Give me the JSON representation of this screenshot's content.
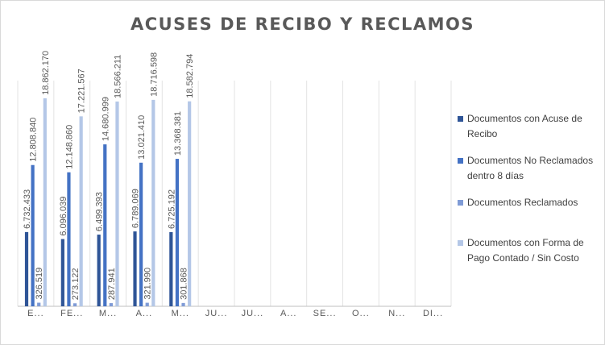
{
  "chart_data": {
    "type": "bar",
    "title": "ACUSES DE RECIBO Y RECLAMOS",
    "categories": [
      "E...",
      "FE...",
      "M...",
      "A...",
      "M...",
      "JU...",
      "JU...",
      "A...",
      "SE...",
      "O...",
      "N...",
      "DI..."
    ],
    "series": [
      {
        "name": "Documentos con Acuse de Recibo",
        "color": "#2f5597",
        "values": [
          6732433,
          6096039,
          6499393,
          6789069,
          6725192,
          null,
          null,
          null,
          null,
          null,
          null,
          null
        ],
        "labels": [
          "6.732.433",
          "6.096.039",
          "6.499.393",
          "6.789.069",
          "6.725.192"
        ]
      },
      {
        "name": "Documentos No Reclamados dentro 8 días",
        "color": "#4472c4",
        "values": [
          12808840,
          12148860,
          14680999,
          13021410,
          13368381,
          null,
          null,
          null,
          null,
          null,
          null,
          null
        ],
        "labels": [
          "12.808.840",
          "12.148.860",
          "14.680.999",
          "13.021.410",
          "13.368.381"
        ]
      },
      {
        "name": "Documentos Reclamados",
        "color": "#7f9bd6",
        "values": [
          326519,
          273122,
          287941,
          321990,
          301868,
          null,
          null,
          null,
          null,
          null,
          null,
          null
        ],
        "labels": [
          "326.519",
          "273.122",
          "287.941",
          "321.990",
          "301.868"
        ]
      },
      {
        "name": "Documentos con Forma de Pago Contado / Sin Costo",
        "color": "#b4c7e7",
        "values": [
          18862170,
          17221567,
          18566211,
          18716598,
          18582794,
          null,
          null,
          null,
          null,
          null,
          null,
          null
        ],
        "labels": [
          "18.862.170",
          "17.221.567",
          "18.566.211",
          "18.716.598",
          "18.582.794"
        ]
      }
    ],
    "ylim": [
      0,
      19000000
    ],
    "gridlines": "vertical",
    "legend_position": "right"
  },
  "legend": {
    "items": [
      {
        "label": "Documentos con Acuse de Recibo",
        "color": "#2f5597"
      },
      {
        "label": "Documentos No Reclamados dentro 8 días",
        "color": "#4472c4"
      },
      {
        "label": "Documentos Reclamados",
        "color": "#7f9bd6"
      },
      {
        "label": "Documentos con Forma de Pago Contado / Sin Costo",
        "color": "#b4c7e7"
      }
    ]
  }
}
